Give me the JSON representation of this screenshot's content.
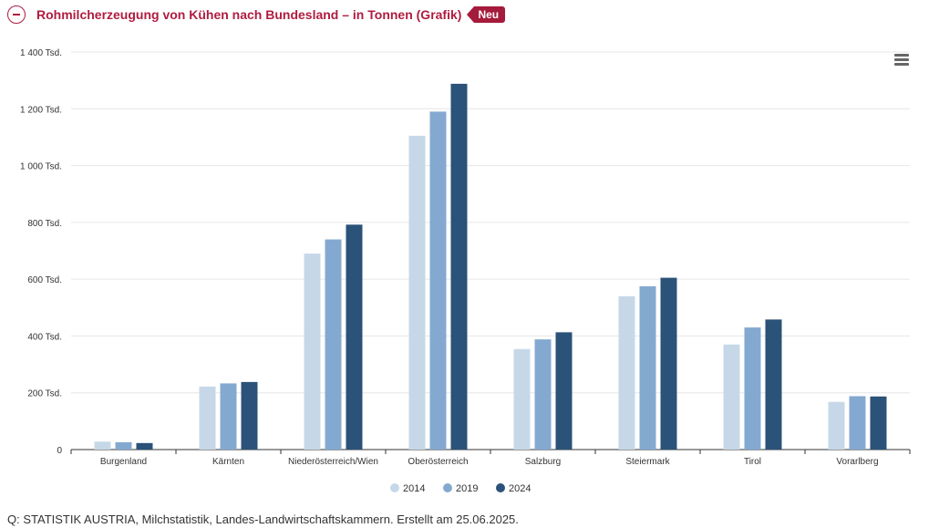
{
  "header": {
    "title": "Rohmilcherzeugung von Kühen nach Bundesland – in Tonnen (Grafik)",
    "badge": "Neu",
    "collapse_icon": "minus-circle-icon",
    "accent_color": "#b01c3f"
  },
  "menu": {
    "icon": "hamburger-menu-icon"
  },
  "chart_data": {
    "type": "bar",
    "title": "",
    "xlabel": "",
    "ylabel": "",
    "ylim": [
      0,
      1400000
    ],
    "yticks": [
      {
        "value": 0,
        "label": "0"
      },
      {
        "value": 200000,
        "label": "200 Tsd."
      },
      {
        "value": 400000,
        "label": "400 Tsd."
      },
      {
        "value": 600000,
        "label": "600 Tsd."
      },
      {
        "value": 800000,
        "label": "800 Tsd."
      },
      {
        "value": 1000000,
        "label": "1 000 Tsd."
      },
      {
        "value": 1200000,
        "label": "1 200 Tsd."
      },
      {
        "value": 1400000,
        "label": "1 400 Tsd."
      }
    ],
    "grid": true,
    "legend_position": "bottom-center",
    "categories": [
      "Burgenland",
      "Kärnten",
      "Niederösterreich/Wien",
      "Oberösterreich",
      "Salzburg",
      "Steiermark",
      "Tirol",
      "Vorarlberg"
    ],
    "series": [
      {
        "name": "2014",
        "color": "#c6d8e7",
        "values": [
          28000,
          222000,
          690000,
          1105000,
          354000,
          540000,
          370000,
          168000
        ]
      },
      {
        "name": "2019",
        "color": "#84a9d1",
        "values": [
          26000,
          233000,
          740000,
          1190000,
          388000,
          575000,
          430000,
          188000
        ]
      },
      {
        "name": "2024",
        "color": "#2b5278",
        "values": [
          23000,
          238000,
          792000,
          1288000,
          413000,
          605000,
          458000,
          187000
        ]
      }
    ]
  },
  "source": "Q: STATISTIK AUSTRIA, Milchstatistik, Landes-Landwirtschaftskammern. Erstellt am 25.06.2025."
}
